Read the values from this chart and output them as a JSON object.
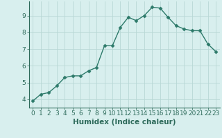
{
  "x": [
    0,
    1,
    2,
    3,
    4,
    5,
    6,
    7,
    8,
    9,
    10,
    11,
    12,
    13,
    14,
    15,
    16,
    17,
    18,
    19,
    20,
    21,
    22,
    23
  ],
  "y": [
    3.9,
    4.3,
    4.4,
    4.8,
    5.3,
    5.4,
    5.4,
    5.7,
    5.9,
    7.2,
    7.2,
    8.3,
    8.9,
    8.7,
    9.0,
    9.5,
    9.45,
    8.9,
    8.4,
    8.2,
    8.1,
    8.1,
    7.3,
    6.85
  ],
  "line_color": "#2d7a6a",
  "marker": "D",
  "markersize": 2.5,
  "bg_color": "#d8efee",
  "grid_color": "#b8d8d5",
  "axis_color": "#2d6a5a",
  "xlabel": "Humidex (Indice chaleur)",
  "xlabel_fontsize": 7.5,
  "ylim": [
    3.5,
    9.85
  ],
  "xlim": [
    -0.5,
    23.5
  ],
  "yticks": [
    4,
    5,
    6,
    7,
    8,
    9
  ],
  "xticks": [
    0,
    1,
    2,
    3,
    4,
    5,
    6,
    7,
    8,
    9,
    10,
    11,
    12,
    13,
    14,
    15,
    16,
    17,
    18,
    19,
    20,
    21,
    22,
    23
  ],
  "tick_fontsize": 6.5,
  "linewidth": 1.0
}
